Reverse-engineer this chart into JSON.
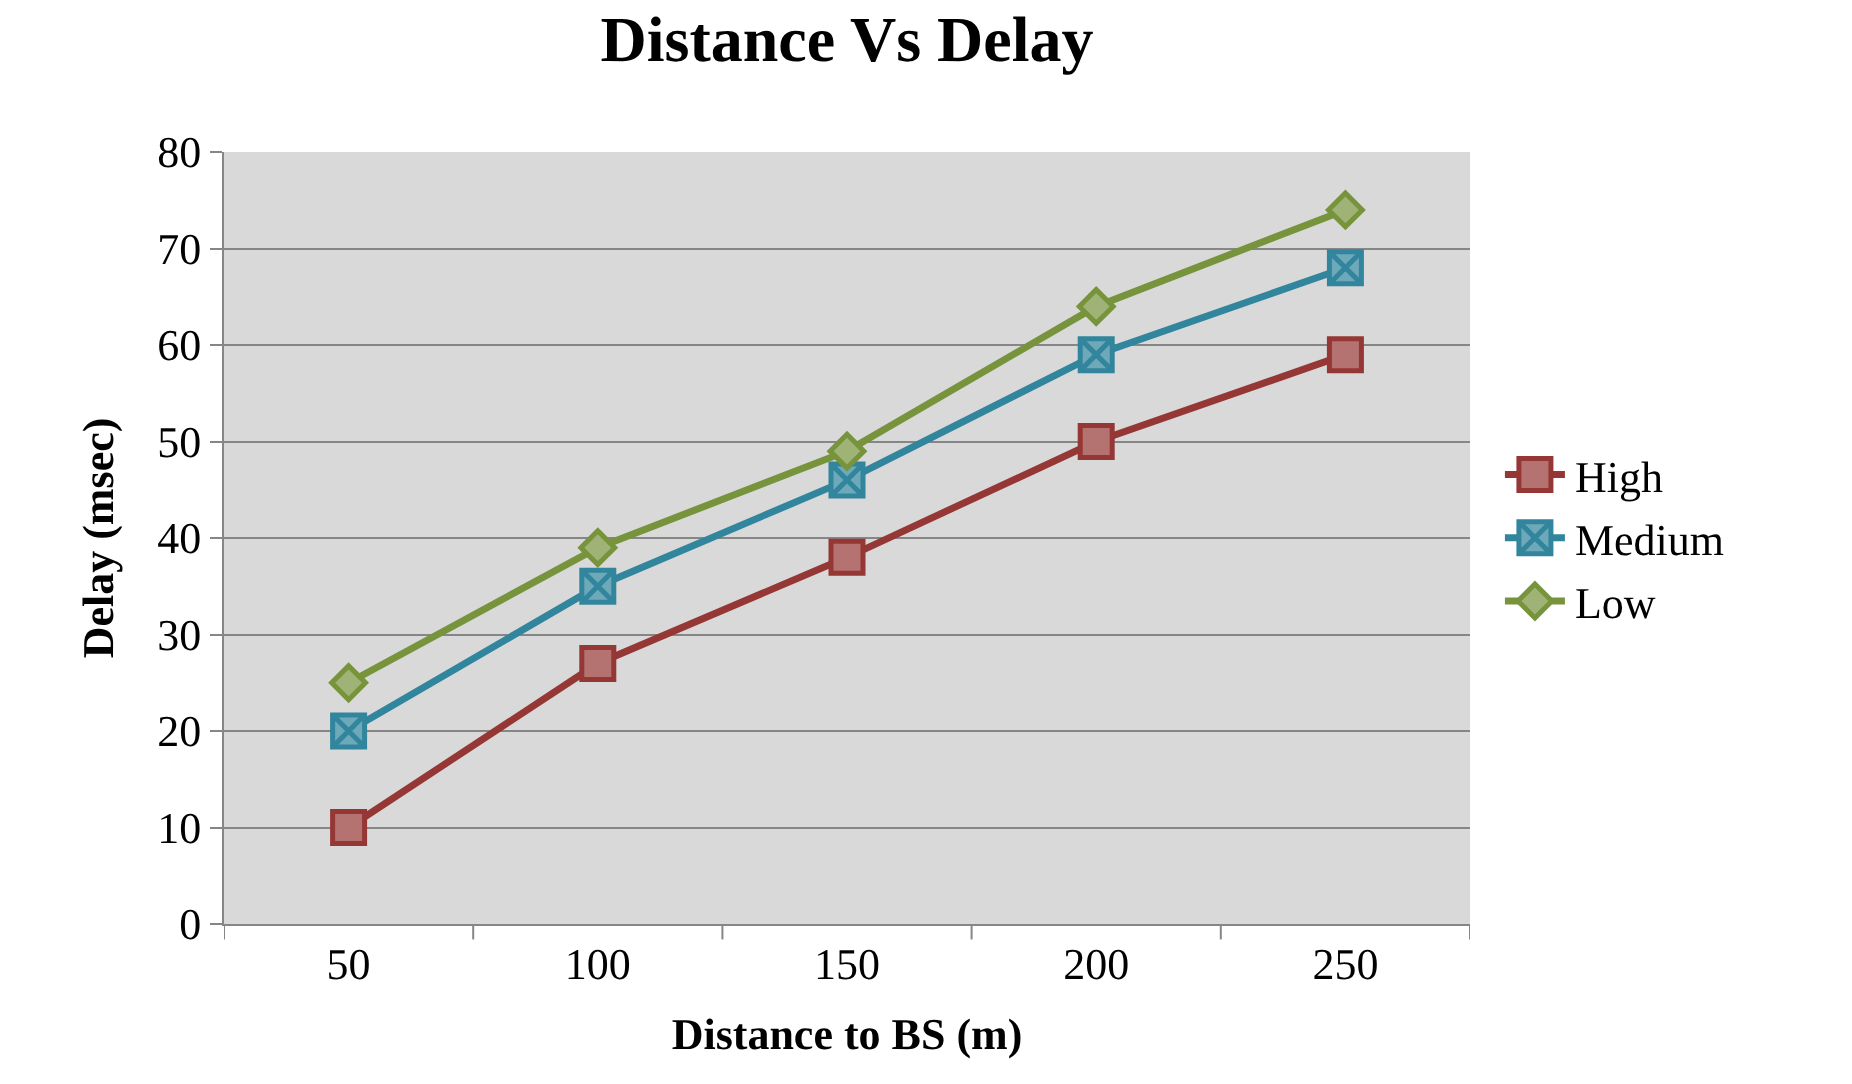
{
  "chart_data": {
    "type": "line",
    "title": "Distance Vs Delay",
    "xlabel": "Distance to BS (m)",
    "ylabel": "Delay (msec)",
    "categories": [
      "50",
      "100",
      "150",
      "200",
      "250"
    ],
    "series": [
      {
        "name": "High",
        "color": "#953735",
        "marker": "square",
        "values": [
          10,
          27,
          38,
          50,
          59
        ]
      },
      {
        "name": "Medium",
        "color": "#31859c",
        "marker": "cross",
        "values": [
          20,
          35,
          46,
          59,
          68
        ]
      },
      {
        "name": "Low",
        "color": "#77933c",
        "marker": "diamond",
        "values": [
          25,
          39,
          49,
          64,
          74
        ]
      }
    ],
    "ylim": [
      0,
      80
    ],
    "yticks": [
      0,
      10,
      20,
      30,
      40,
      50,
      60,
      70,
      80
    ],
    "grid": "y",
    "legend": "right"
  }
}
